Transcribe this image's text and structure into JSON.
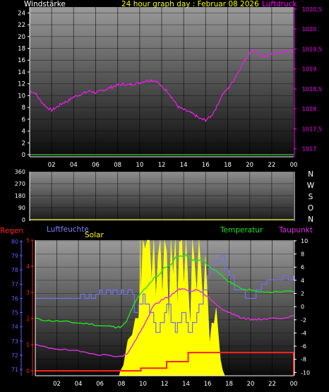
{
  "colors": {
    "background": "#000000",
    "axis": "#ffffff",
    "wind_label": "#ffffff",
    "title": "#ffff00",
    "pressure": "#ff00ff",
    "pressure_line": "#e020e0",
    "direction_line": "#d8d840",
    "rain": "#ff2020",
    "humidity_label": "#8080ff",
    "humidity_axis": "#6060ff",
    "humidity_line": "#7070f0",
    "solar": "#ffff00",
    "temperature": "#20e020",
    "dewpoint": "#e030e0"
  },
  "chart_data": [
    {
      "id": "wind_pressure",
      "type": "line",
      "title": "24 hour graph day : Februar 08 2026",
      "left_label": "Windstärke",
      "right_label": "Luftdruck",
      "x_ticks": [
        "02",
        "04",
        "06",
        "08",
        "10",
        "12",
        "14",
        "16",
        "18",
        "20",
        "22",
        "00"
      ],
      "left_ticks": [
        "0",
        "2",
        "4",
        "6",
        "8",
        "10",
        "12",
        "14",
        "16",
        "18",
        "20",
        "22",
        "24"
      ],
      "right_ticks": [
        "1017",
        "1017,5",
        "1018",
        "1018,5",
        "1019",
        "1019,5",
        "1020",
        "1020,5"
      ],
      "xlim": [
        0,
        24
      ],
      "ylim_left": [
        0,
        25
      ],
      "ylim_right": [
        1016.8,
        1020.55
      ],
      "grid": true,
      "series": [
        {
          "name": "Luftdruck",
          "axis": "right",
          "x": [
            0,
            0.5,
            1,
            1.5,
            2,
            2.5,
            3,
            3.5,
            4,
            4.5,
            5,
            5.5,
            6,
            6.5,
            7,
            7.5,
            8,
            8.5,
            9,
            9.5,
            10,
            10.5,
            11,
            11.5,
            12,
            12.5,
            13,
            13.5,
            14,
            14.5,
            15,
            15.5,
            16,
            16.5,
            17,
            17.5,
            18,
            18.5,
            19,
            19.5,
            20,
            20.5,
            21,
            21.5,
            22,
            22.5,
            23,
            23.5,
            24
          ],
          "values": [
            1018.45,
            1018.4,
            1018.2,
            1018.05,
            1017.97,
            1018.05,
            1018.15,
            1018.2,
            1018.3,
            1018.35,
            1018.4,
            1018.45,
            1018.4,
            1018.45,
            1018.5,
            1018.55,
            1018.6,
            1018.62,
            1018.6,
            1018.63,
            1018.65,
            1018.7,
            1018.72,
            1018.7,
            1018.55,
            1018.45,
            1018.25,
            1018.05,
            1017.98,
            1017.92,
            1017.85,
            1017.75,
            1017.72,
            1017.82,
            1018.05,
            1018.35,
            1018.5,
            1018.7,
            1018.95,
            1019.2,
            1019.42,
            1019.48,
            1019.3,
            1019.32,
            1019.38,
            1019.4,
            1019.42,
            1019.45,
            1019.42
          ]
        },
        {
          "name": "Windstärke",
          "axis": "left",
          "x": [
            0,
            24
          ],
          "values": [
            0,
            0
          ]
        }
      ]
    },
    {
      "id": "wind_direction",
      "type": "line",
      "left_ticks": [
        "0",
        "90",
        "180",
        "270",
        "360"
      ],
      "right_labels": [
        "N",
        "W",
        "S",
        "O",
        "N"
      ],
      "ylim": [
        0,
        360
      ],
      "series": [
        {
          "name": "Windrichtung",
          "x": [
            0,
            24
          ],
          "values": [
            0,
            0
          ]
        }
      ]
    },
    {
      "id": "rain_humidity_temp",
      "type": "area",
      "labels": {
        "rain": "Regen",
        "humidity": "Luftfeuchte",
        "solar": "Solar",
        "temperature": "Temperatur",
        "dewpoint": "Taupunkt"
      },
      "x_ticks": [
        "02",
        "04",
        "06",
        "08",
        "10",
        "12",
        "14",
        "16",
        "18",
        "20",
        "22",
        "00"
      ],
      "rain_ticks": [
        "0",
        "1",
        "2",
        "3",
        "4",
        "5"
      ],
      "humidity_ticks": [
        "71",
        "72",
        "73",
        "74",
        "75",
        "76",
        "77",
        "78",
        "79",
        "80"
      ],
      "temp_ticks": [
        "-10",
        "-8",
        "-6",
        "-4",
        "-2",
        "0",
        "2",
        "4",
        "6",
        "8",
        "10"
      ],
      "xlim": [
        0,
        24
      ],
      "ylim_humidity": [
        70.8,
        80.1
      ],
      "ylim_temp": [
        -10.5,
        10.1
      ],
      "ylim_rain": [
        0,
        5
      ],
      "series": [
        {
          "name": "Solar",
          "kind": "area",
          "note": "relative 0..1 of panel height",
          "x": [
            0,
            7.8,
            7.9,
            8.2,
            8.6,
            9,
            9.3,
            9.6,
            9.7,
            9.75,
            9.8,
            10,
            10.2,
            10.4,
            10.6,
            10.8,
            11,
            11.2,
            11.4,
            11.6,
            11.8,
            12,
            12.2,
            12.4,
            12.6,
            12.8,
            13,
            13.2,
            13.4,
            13.6,
            13.8,
            14,
            14.2,
            14.4,
            14.6,
            14.8,
            15,
            15.2,
            15.4,
            15.6,
            15.8,
            16,
            16.2,
            16.4,
            16.6,
            16.8,
            17,
            17.2,
            17.4,
            17.6,
            24
          ],
          "values": [
            0,
            0,
            0.06,
            0.12,
            0.2,
            0.32,
            0.4,
            0.46,
            0.55,
            1,
            0.6,
            1,
            0.95,
            1,
            1,
            0.7,
            1,
            0.5,
            0.85,
            1,
            0.6,
            1,
            0.9,
            0.35,
            1,
            0.8,
            1,
            0.45,
            0.95,
            1,
            0.6,
            1,
            0.7,
            0.4,
            1,
            0.85,
            0.55,
            1,
            0.75,
            0.45,
            0.9,
            0.6,
            0.2,
            0.45,
            0.35,
            0.5,
            0.3,
            0.15,
            0.04,
            0,
            0
          ]
        },
        {
          "name": "Luftfeuchte",
          "x": [
            0,
            4,
            4.2,
            4.6,
            5,
            5.2,
            5.6,
            6,
            6.2,
            6.6,
            7,
            7.2,
            7.6,
            8,
            8.2,
            8.6,
            9,
            9.2,
            9.6,
            10,
            10.2,
            10.6,
            11,
            11.2,
            11.6,
            12,
            12.2,
            12.6,
            13,
            13.2,
            13.6,
            14,
            14.2,
            14.6,
            15,
            15.2,
            15.6,
            16,
            16.2,
            16.6,
            17,
            17.2,
            17.6,
            18,
            18.5,
            19,
            19.5,
            20,
            20.5,
            21,
            21.5,
            22,
            22.5,
            23,
            23.5,
            24
          ],
          "values": [
            76,
            76,
            76.3,
            76,
            76.3,
            76,
            76.3,
            76.6,
            76.3,
            76.6,
            76.3,
            76.6,
            76.3,
            76.6,
            76.3,
            76.6,
            76.3,
            75,
            75.6,
            76.3,
            75.6,
            75,
            74.3,
            73.6,
            74.3,
            75,
            75.6,
            74.3,
            73.6,
            74.3,
            75,
            74.3,
            73.6,
            74.3,
            75,
            75.6,
            76.6,
            77.6,
            78,
            78.6,
            78.6,
            79,
            78,
            77.6,
            76.6,
            76.6,
            76,
            76,
            76.6,
            77,
            77.3,
            77.3,
            77.3,
            77.6,
            77.3,
            77.6
          ]
        },
        {
          "name": "Temperatur",
          "x": [
            0,
            1,
            2,
            3,
            4,
            5,
            6,
            7,
            7.5,
            8,
            8.5,
            9,
            9.5,
            10,
            10.5,
            11,
            11.5,
            12,
            12.5,
            13,
            13.5,
            14,
            14.5,
            15,
            15.5,
            16,
            16.5,
            17,
            17.5,
            18,
            18.5,
            19,
            19.5,
            20,
            20.5,
            21,
            22,
            23,
            24
          ],
          "values": [
            -1.8,
            -2.1,
            -2.2,
            -2.3,
            -2.5,
            -2.6,
            -2.9,
            -3.0,
            -3.1,
            -3.1,
            -2.2,
            -0.2,
            1.3,
            2.5,
            3.2,
            4.3,
            4.8,
            6.0,
            6.2,
            7.4,
            7.7,
            7.8,
            7.2,
            6.9,
            7.2,
            6.3,
            5.7,
            5.3,
            4.3,
            3.8,
            3.4,
            2.8,
            2.6,
            2.6,
            2.3,
            2.2,
            2.2,
            2.3,
            2.3
          ]
        },
        {
          "name": "Taupunkt",
          "x": [
            0,
            1,
            2,
            3,
            4,
            5,
            6,
            7,
            8,
            8.5,
            9,
            9.5,
            10,
            10.5,
            11,
            11.5,
            12,
            12.5,
            13,
            13.5,
            14,
            14.5,
            15,
            15.5,
            16,
            16.5,
            17,
            17.5,
            18,
            18.5,
            19,
            19.5,
            20,
            20.5,
            21,
            22,
            23,
            24
          ],
          "values": [
            -5.8,
            -6.2,
            -6.4,
            -6.6,
            -6.8,
            -7.0,
            -7.3,
            -7.4,
            -7.6,
            -7.2,
            -6.0,
            -4.5,
            -3.2,
            -1.5,
            0.2,
            0.7,
            1.3,
            1.5,
            2.3,
            2.7,
            2.6,
            2.3,
            2.6,
            2.2,
            1.5,
            0.8,
            0.0,
            -0.6,
            -0.8,
            -1.2,
            -1.6,
            -1.8,
            -2.0,
            -1.9,
            -1.9,
            -1.8,
            -1.7,
            -1.4
          ]
        },
        {
          "name": "Regen",
          "x": [
            0,
            9.8,
            9.8,
            12.2,
            12.2,
            14.2,
            14.2,
            24
          ],
          "values": [
            0,
            0,
            0.1,
            0.1,
            0.35,
            0.35,
            0.7,
            0.7
          ]
        }
      ]
    }
  ]
}
